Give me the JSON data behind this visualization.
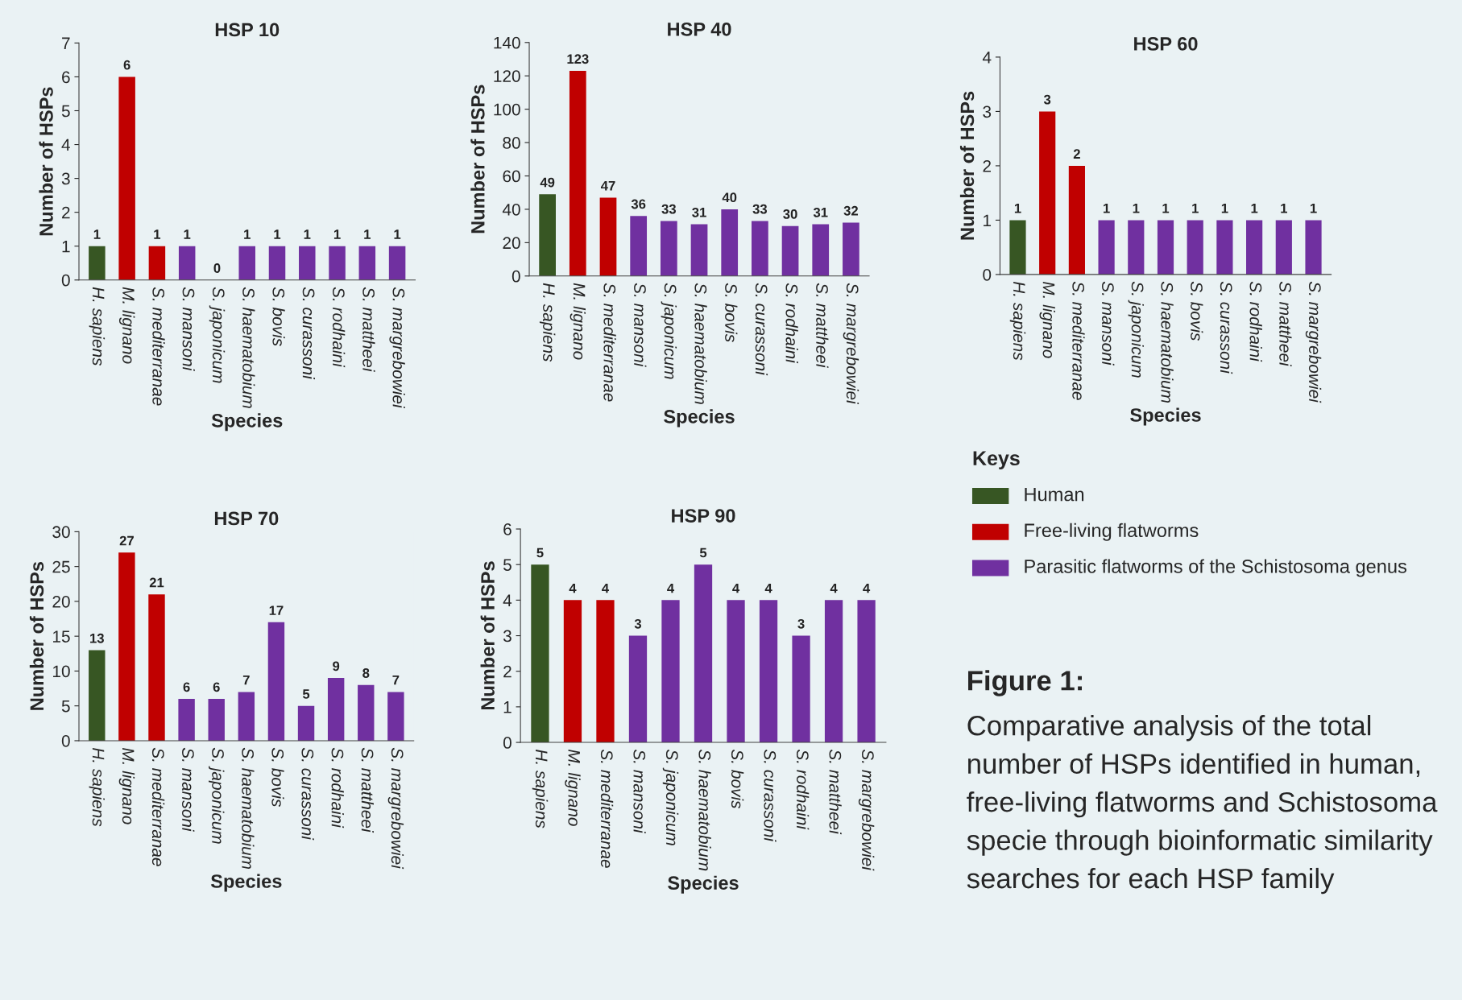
{
  "chart_data": [
    {
      "type": "bar",
      "title": "HSP 10",
      "xlabel": "Species",
      "ylabel": "Number of HSPs",
      "categories": [
        "H. sapiens",
        "M. lignano",
        "S. mediterranae",
        "S. mansoni",
        "S. japonicum",
        "S. haematobium",
        "S. bovis",
        "S. curassoni",
        "S. rodhaini",
        "S. mattheei",
        "S. margrebowiei"
      ],
      "values": [
        1,
        6,
        1,
        1,
        0,
        1,
        1,
        1,
        1,
        1,
        1
      ],
      "colors": [
        "#375623",
        "#c00000",
        "#c00000",
        "#7030a0",
        "#7030a0",
        "#7030a0",
        "#7030a0",
        "#7030a0",
        "#7030a0",
        "#7030a0",
        "#7030a0"
      ],
      "ylim": [
        0,
        7
      ],
      "yticks": [
        0,
        1,
        2,
        3,
        4,
        5,
        6,
        7
      ],
      "data_labels": true,
      "grid": false,
      "legend": false
    },
    {
      "type": "bar",
      "title": "HSP 40",
      "xlabel": "Species",
      "ylabel": "Number of HSPs",
      "categories": [
        "H. sapiens",
        "M. lignano",
        "S. mediterranae",
        "S. mansoni",
        "S. japonicum",
        "S. haematobium",
        "S. bovis",
        "S. curassoni",
        "S. rodhaini",
        "S. mattheei",
        "S. margrebowiei"
      ],
      "values": [
        49,
        123,
        47,
        36,
        33,
        31,
        40,
        33,
        30,
        31,
        32
      ],
      "colors": [
        "#375623",
        "#c00000",
        "#c00000",
        "#7030a0",
        "#7030a0",
        "#7030a0",
        "#7030a0",
        "#7030a0",
        "#7030a0",
        "#7030a0",
        "#7030a0"
      ],
      "ylim": [
        0,
        140
      ],
      "yticks": [
        0,
        20,
        40,
        60,
        80,
        100,
        120,
        140
      ],
      "data_labels": true,
      "grid": false,
      "legend": false
    },
    {
      "type": "bar",
      "title": "HSP 60",
      "xlabel": "Species",
      "ylabel": "Number of HSPs",
      "categories": [
        "H. sapiens",
        "M. lignano",
        "S. mediterranae",
        "S. mansoni",
        "S. japonicum",
        "S. haematobium",
        "S. bovis",
        "S. curassoni",
        "S. rodhaini",
        "S. mattheei",
        "S. margrebowiei"
      ],
      "values": [
        1,
        3,
        2,
        1,
        1,
        1,
        1,
        1,
        1,
        1,
        1
      ],
      "colors": [
        "#375623",
        "#c00000",
        "#c00000",
        "#7030a0",
        "#7030a0",
        "#7030a0",
        "#7030a0",
        "#7030a0",
        "#7030a0",
        "#7030a0",
        "#7030a0"
      ],
      "ylim": [
        0,
        4
      ],
      "yticks": [
        0,
        1,
        2,
        3,
        4
      ],
      "data_labels": true,
      "grid": false,
      "legend": false
    },
    {
      "type": "bar",
      "title": "HSP 70",
      "xlabel": "Species",
      "ylabel": "Number of HSPs",
      "categories": [
        "H. sapiens",
        "M. lignano",
        "S. mediterranae",
        "S. mansoni",
        "S. japonicum",
        "S. haematobium",
        "S. bovis",
        "S. curassoni",
        "S. rodhaini",
        "S. mattheei",
        "S. margrebowiei"
      ],
      "values": [
        13,
        27,
        21,
        6,
        6,
        7,
        17,
        5,
        9,
        8,
        7
      ],
      "colors": [
        "#375623",
        "#c00000",
        "#c00000",
        "#7030a0",
        "#7030a0",
        "#7030a0",
        "#7030a0",
        "#7030a0",
        "#7030a0",
        "#7030a0",
        "#7030a0"
      ],
      "ylim": [
        0,
        30
      ],
      "yticks": [
        0,
        5,
        10,
        15,
        20,
        25,
        30
      ],
      "data_labels": true,
      "grid": false,
      "legend": false
    },
    {
      "type": "bar",
      "title": "HSP 90",
      "xlabel": "Species",
      "ylabel": "Number of HSPs",
      "categories": [
        "H. sapiens",
        "M. lignano",
        "S. mediterranae",
        "S. mansoni",
        "S. japonicum",
        "S. haematobium",
        "S. bovis",
        "S. curassoni",
        "S. rodhaini",
        "S. mattheei",
        "S. margrebowiei"
      ],
      "values": [
        5,
        4,
        4,
        3,
        4,
        5,
        4,
        4,
        3,
        4,
        4
      ],
      "colors": [
        "#375623",
        "#c00000",
        "#c00000",
        "#7030a0",
        "#7030a0",
        "#7030a0",
        "#7030a0",
        "#7030a0",
        "#7030a0",
        "#7030a0",
        "#7030a0"
      ],
      "ylim": [
        0,
        6
      ],
      "yticks": [
        0,
        1,
        2,
        3,
        4,
        5,
        6
      ],
      "data_labels": true,
      "grid": false,
      "legend": false
    },
    {
      "type": "other",
      "legend_title": "Keys",
      "categories": [
        "Human",
        "Free-living flatworms",
        "Parasitic flatworms of the Schistosoma genus"
      ],
      "colors": [
        "#375623",
        "#c00000",
        "#7030a0"
      ],
      "annotations": [
        "Figure 1:",
        "Comparative analysis of the total number of HSPs identified in human, free-living flatworms and Schistosoma specie through bioinformatic similarity searches for each HSP family"
      ]
    }
  ]
}
